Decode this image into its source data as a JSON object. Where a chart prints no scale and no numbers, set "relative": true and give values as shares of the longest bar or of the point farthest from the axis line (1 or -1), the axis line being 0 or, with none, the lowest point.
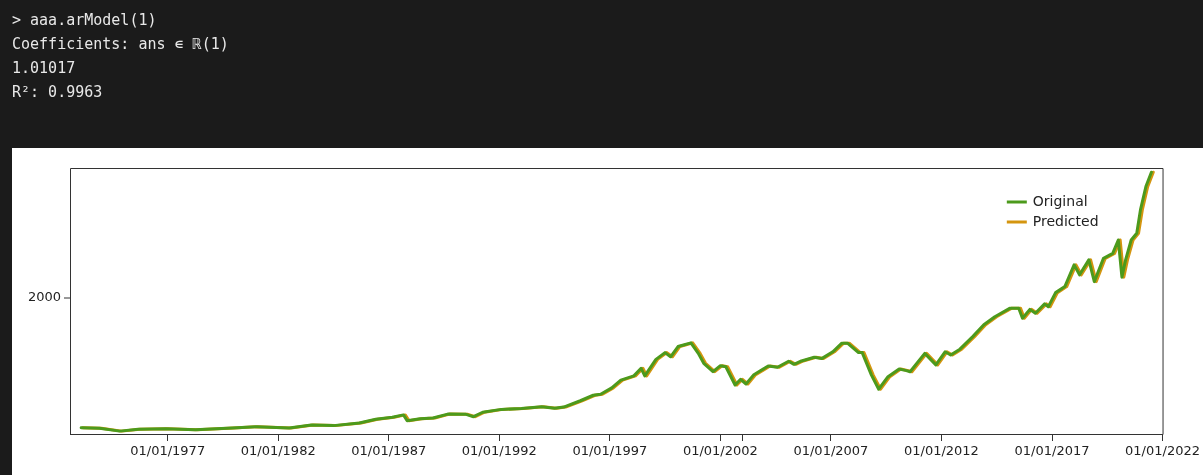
{
  "chart_data": {
    "type": "line",
    "relative": true,
    "annotations": [
      "> aaa.arModel(1)",
      "Coefficients: ans ∊ ℝ(1)",
      "1.01017",
      "R²: 0.9963",
      "2000"
    ],
    "xlim": [
      "1972-08-01",
      "2022-01-01"
    ],
    "xticks": [
      {
        "value": "1977-01-01",
        "label": "01/01/1977"
      },
      {
        "value": "1982-01-01",
        "label": "01/01/1982"
      },
      {
        "value": "1987-01-01",
        "label": "01/01/1987"
      },
      {
        "value": "1992-01-01",
        "label": "01/01/1992"
      },
      {
        "value": "1997-01-01",
        "label": "01/01/1997"
      },
      {
        "value": "2002-01-01",
        "label": "01/01/2002"
      },
      {
        "value": "2003-01-01",
        "label": null
      },
      {
        "value": "2007-01-01",
        "label": "01/01/2007"
      },
      {
        "value": "2012-01-01",
        "label": "01/01/2012"
      },
      {
        "value": "2017-01-01",
        "label": "01/01/2017"
      },
      {
        "value": "2022-01-01",
        "label": "01/01/2022"
      }
    ],
    "legend": "top right",
    "grid": false,
    "marker": "none",
    "line_style": "solid",
    "series": [
      {
        "name": "Original",
        "color": "#4c9a1c",
        "x": [
          "1973-02",
          "1973-12",
          "1974-11",
          "1975-09",
          "1976-12",
          "1978-04",
          "1979-12",
          "1981-01",
          "1982-07",
          "1983-07",
          "1984-07",
          "1985-09",
          "1986-06",
          "1987-03",
          "1987-09",
          "1987-11",
          "1988-06",
          "1989-01",
          "1989-09",
          "1990-07",
          "1990-11",
          "1991-04",
          "1992-02",
          "1993-01",
          "1993-12",
          "1994-07",
          "1994-12",
          "1995-09",
          "1996-04",
          "1996-08",
          "1997-02",
          "1997-07",
          "1998-02",
          "1998-06",
          "1998-08",
          "1999-02",
          "1999-07",
          "1999-10",
          "2000-02",
          "2000-05",
          "2000-09",
          "2001-01",
          "2001-04",
          "2001-09",
          "2002-01",
          "2002-04",
          "2002-09",
          "2002-12",
          "2003-03",
          "2003-07",
          "2004-03",
          "2004-08",
          "2005-02",
          "2005-05",
          "2005-09",
          "2006-04",
          "2006-08",
          "2007-02",
          "2007-07",
          "2007-10",
          "2008-04",
          "2008-06",
          "2008-11",
          "2009-03",
          "2009-08",
          "2010-02",
          "2010-06",
          "2010-08",
          "2011-04",
          "2011-10",
          "2012-03",
          "2012-06",
          "2012-11",
          "2013-06",
          "2013-12",
          "2014-06",
          "2015-02",
          "2015-07",
          "2015-09",
          "2016-01",
          "2016-04",
          "2016-09",
          "2016-11",
          "2017-03",
          "2017-08",
          "2018-01",
          "2018-04",
          "2018-09",
          "2018-12",
          "2019-05",
          "2019-10",
          "2020-01",
          "2020-03",
          "2020-05",
          "2020-08",
          "2020-11",
          "2021-01",
          "2021-04",
          "2021-07"
        ],
        "values": [
          0.024,
          0.022,
          0.011,
          0.018,
          0.02,
          0.016,
          0.023,
          0.028,
          0.023,
          0.034,
          0.032,
          0.042,
          0.056,
          0.064,
          0.073,
          0.051,
          0.058,
          0.061,
          0.076,
          0.075,
          0.066,
          0.083,
          0.094,
          0.097,
          0.104,
          0.098,
          0.103,
          0.127,
          0.148,
          0.152,
          0.176,
          0.206,
          0.222,
          0.251,
          0.222,
          0.285,
          0.311,
          0.295,
          0.334,
          0.34,
          0.348,
          0.308,
          0.27,
          0.238,
          0.261,
          0.257,
          0.187,
          0.209,
          0.191,
          0.225,
          0.26,
          0.255,
          0.278,
          0.266,
          0.279,
          0.293,
          0.288,
          0.314,
          0.347,
          0.347,
          0.311,
          0.311,
          0.225,
          0.171,
          0.219,
          0.248,
          0.242,
          0.238,
          0.308,
          0.264,
          0.314,
          0.302,
          0.324,
          0.372,
          0.417,
          0.448,
          0.48,
          0.48,
          0.442,
          0.476,
          0.461,
          0.497,
          0.486,
          0.54,
          0.563,
          0.646,
          0.608,
          0.665,
          0.582,
          0.671,
          0.69,
          0.741,
          0.599,
          0.665,
          0.741,
          0.767,
          0.856,
          0.945,
          1
        ]
      },
      {
        "name": "Predicted",
        "color": "#d4950f",
        "x": [
          "1973-03",
          "1974-01",
          "1974-12",
          "1975-10",
          "1977-01",
          "1978-05",
          "1980-01",
          "1981-02",
          "1982-08",
          "1983-08",
          "1984-08",
          "1985-10",
          "1986-07",
          "1987-04",
          "1987-10",
          "1987-12",
          "1988-07",
          "1989-02",
          "1989-10",
          "1990-08",
          "1990-12",
          "1991-05",
          "1992-03",
          "1993-02",
          "1994-01",
          "1994-08",
          "1995-01",
          "1995-10",
          "1996-05",
          "1996-09",
          "1997-03",
          "1997-08",
          "1998-03",
          "1998-07",
          "1998-09",
          "1999-03",
          "1999-08",
          "1999-11",
          "2000-03",
          "2000-06",
          "2000-10",
          "2001-02",
          "2001-05",
          "2001-10",
          "2002-02",
          "2002-05",
          "2002-10",
          "2003-01",
          "2003-04",
          "2003-08",
          "2004-04",
          "2004-09",
          "2005-03",
          "2005-06",
          "2005-10",
          "2006-05",
          "2006-09",
          "2007-03",
          "2007-08",
          "2007-11",
          "2008-05",
          "2008-07",
          "2008-12",
          "2009-04",
          "2009-09",
          "2010-03",
          "2010-07",
          "2010-09",
          "2011-05",
          "2011-11",
          "2012-04",
          "2012-07",
          "2012-12",
          "2013-07",
          "2014-01",
          "2014-07",
          "2015-03",
          "2015-08",
          "2015-10",
          "2016-02",
          "2016-05",
          "2016-10",
          "2016-12",
          "2017-04",
          "2017-09",
          "2018-02",
          "2018-05",
          "2018-10",
          "2019-01",
          "2019-06",
          "2019-11",
          "2020-02",
          "2020-04",
          "2020-06",
          "2020-09",
          "2020-12",
          "2021-02",
          "2021-05",
          "2021-08"
        ],
        "values": [
          0.024,
          0.022,
          0.011,
          0.018,
          0.02,
          0.016,
          0.023,
          0.028,
          0.023,
          0.034,
          0.032,
          0.042,
          0.056,
          0.064,
          0.073,
          0.051,
          0.058,
          0.061,
          0.076,
          0.075,
          0.066,
          0.083,
          0.094,
          0.097,
          0.104,
          0.098,
          0.103,
          0.127,
          0.148,
          0.152,
          0.176,
          0.206,
          0.222,
          0.251,
          0.222,
          0.285,
          0.311,
          0.295,
          0.334,
          0.34,
          0.348,
          0.308,
          0.27,
          0.238,
          0.261,
          0.257,
          0.187,
          0.209,
          0.191,
          0.225,
          0.26,
          0.255,
          0.278,
          0.266,
          0.279,
          0.293,
          0.288,
          0.314,
          0.347,
          0.347,
          0.311,
          0.311,
          0.225,
          0.171,
          0.219,
          0.248,
          0.242,
          0.238,
          0.308,
          0.264,
          0.314,
          0.302,
          0.324,
          0.372,
          0.417,
          0.448,
          0.48,
          0.48,
          0.442,
          0.476,
          0.461,
          0.497,
          0.486,
          0.54,
          0.563,
          0.646,
          0.608,
          0.665,
          0.582,
          0.671,
          0.69,
          0.741,
          0.599,
          0.665,
          0.741,
          0.767,
          0.856,
          0.945,
          1
        ]
      }
    ]
  }
}
